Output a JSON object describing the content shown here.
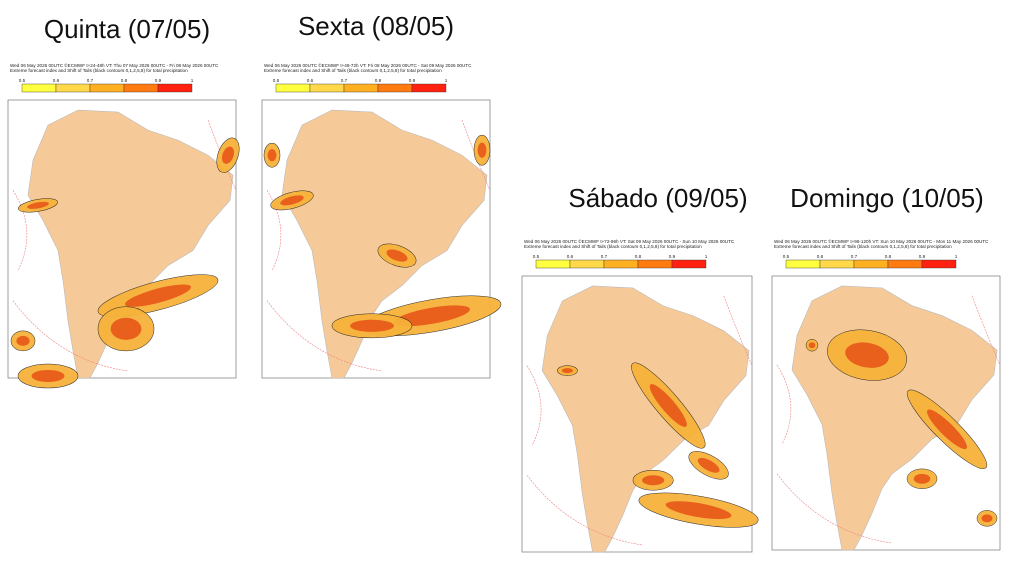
{
  "panels": [
    {
      "title": "Quinta (07/05)",
      "header": [
        "Wed 06 May 2026 00UTC ©ECMWF t+24-48h VT: Thu 07 May 2026 00UTC - Fri 08 May 2026 00UTC",
        "Extreme forecast index and Shift of Tails (black contours 0,1,2,5,8) for total precipitation"
      ],
      "scale": [
        "0.5",
        "0.6",
        "0.7",
        "0.8",
        "0.9",
        "1"
      ]
    },
    {
      "title": "Sexta (08/05)",
      "header": [
        "Wed 06 May 2026 00UTC ©ECMWF t+48-72h VT: Fri 08 May 2026 00UTC - Sat 09 May 2026 00UTC",
        "Extreme forecast index and Shift of Tails (black contours 0,1,2,5,8) for total precipitation"
      ],
      "scale": [
        "0.5",
        "0.6",
        "0.7",
        "0.8",
        "0.9",
        "1"
      ]
    },
    {
      "title": "Sábado (09/05)",
      "header": [
        "Wed 06 May 2026 00UTC ©ECMWF t+72-96h VT: Sat 09 May 2026 00UTC - Sun 10 May 2026 00UTC",
        "Extreme forecast index and Shift of Tails (black contours 0,1,2,5,8) for total precipitation"
      ],
      "scale": [
        "0.5",
        "0.6",
        "0.7",
        "0.8",
        "0.9",
        "1"
      ]
    },
    {
      "title": "Domingo (10/05)",
      "header": [
        "Wed 06 May 2026 00UTC ©ECMWF t+96-120h VT: Sun 10 May 2026 00UTC - Mon 11 May 2026 00UTC",
        "Extreme forecast index and Shift of Tails (black contours 0,1,2,5,8) for total precipitation"
      ],
      "scale": [
        "0.5",
        "0.6",
        "0.7",
        "0.8",
        "0.9",
        "1"
      ]
    }
  ]
}
